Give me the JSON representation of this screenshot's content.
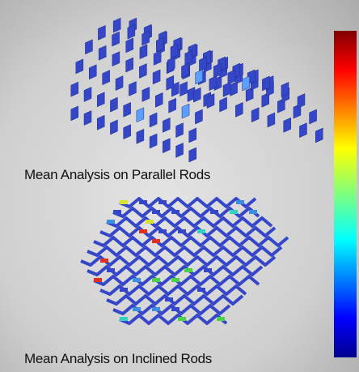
{
  "figures": [
    {
      "caption": "Mean Analysis on Parallel Rods"
    },
    {
      "caption": "Mean Analysis on Inclined Rods"
    }
  ]
}
